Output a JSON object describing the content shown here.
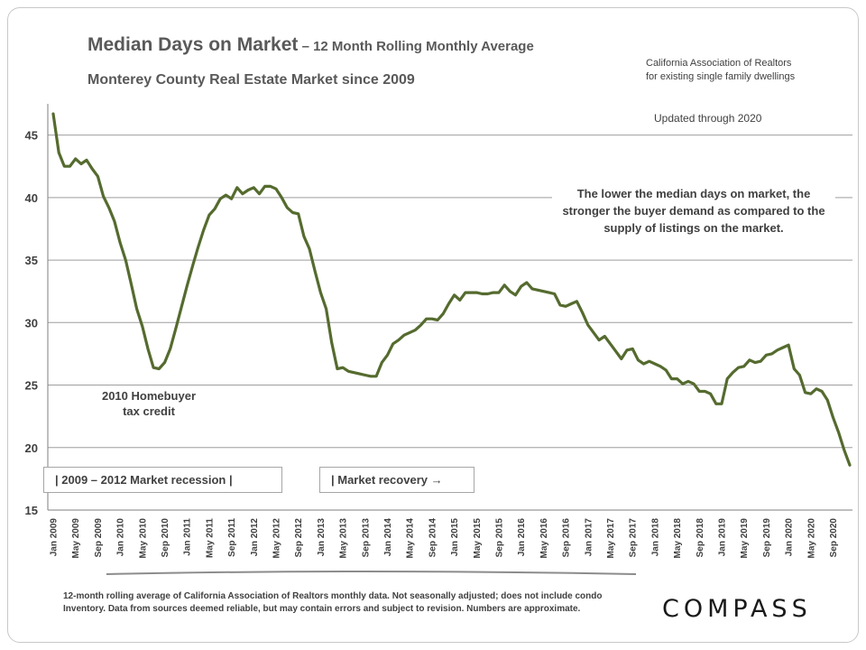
{
  "header": {
    "title_main": "Median Days on Market",
    "title_sub": " – 12 Month Rolling Monthly Average",
    "subtitle": "Monterey County Real Estate Market since 2009",
    "source_line1": "California Association of Realtors",
    "source_line2": "for existing single family dwellings",
    "updated": "Updated through 2020"
  },
  "annotations": {
    "note": "The lower the median days on market, the stronger the buyer demand as compared to the supply of listings on the market.",
    "credit_line1": "2010 Homebuyer",
    "credit_line2": "tax credit",
    "recession": "|   2009 – 2012 Market recession   |",
    "recovery": "| Market recovery →"
  },
  "footer": {
    "footnote": "12-month rolling average of California Association of Realtors monthly data. Not seasonally adjusted; does not include condo Inventory. Data from sources deemed reliable, but may contain errors and subject to revision. Numbers are approximate.",
    "logo": "COMPASS"
  },
  "colors": {
    "line": "#556b2f",
    "grid": "#9e9e9e",
    "text": "#404040"
  },
  "chart_data": {
    "type": "line",
    "title": "Median Days on Market – 12 Month Rolling Monthly Average",
    "ylim": [
      15,
      47.5
    ],
    "yticks": [
      15,
      20,
      25,
      30,
      35,
      40,
      45
    ],
    "grid": "horizontal",
    "x_start": "Jan 2009",
    "x_end": "Dec 2020",
    "x_tick_labels": [
      "Jan 2009",
      "May 2009",
      "Sep 2009",
      "Jan 2010",
      "May 2010",
      "Sep 2010",
      "Jan 2011",
      "May 2011",
      "Sep 2011",
      "Jan 2012",
      "May 2012",
      "Sep 2012",
      "Jan 2013",
      "May 2013",
      "Sep 2013",
      "Jan 2014",
      "May 2014",
      "Sep 2014",
      "Jan 2015",
      "May 2015",
      "Sep 2015",
      "Jan 2016",
      "May 2016",
      "Sep 2016",
      "Jan 2017",
      "May 2017",
      "Sep 2017",
      "Jan 2018",
      "May 2018",
      "Sep 2018",
      "Jan 2019",
      "May 2019",
      "Sep 2019",
      "Jan 2020",
      "May 2020",
      "Sep 2020"
    ],
    "series": [
      {
        "values": [
          46.7,
          43.6,
          42.5,
          42.5,
          43.1,
          42.7,
          43.0,
          42.3,
          41.7,
          40.1,
          39.2,
          38.1,
          36.4,
          35.0,
          33.1,
          31.1,
          29.7,
          27.9,
          26.4,
          26.3,
          26.8,
          27.9,
          29.5,
          31.2,
          32.9,
          34.5,
          36.0,
          37.4,
          38.6,
          39.1,
          39.9,
          40.2,
          39.9,
          40.8,
          40.3,
          40.6,
          40.8,
          40.3,
          40.9,
          40.9,
          40.7,
          40.0,
          39.2,
          38.8,
          38.7,
          36.9,
          35.9,
          34.1,
          32.4,
          31.1,
          28.4,
          26.3,
          26.4,
          26.1,
          26.0,
          25.9,
          25.8,
          25.7,
          25.7,
          26.8,
          27.4,
          28.3,
          28.6,
          29.0,
          29.2,
          29.4,
          29.8,
          30.3,
          30.3,
          30.2,
          30.7,
          31.5,
          32.2,
          31.8,
          32.4,
          32.4,
          32.4,
          32.3,
          32.3,
          32.4,
          32.4,
          33.0,
          32.5,
          32.2,
          32.9,
          33.2,
          32.7,
          32.6,
          32.5,
          32.4,
          32.3,
          31.4,
          31.3,
          31.5,
          31.7,
          30.8,
          29.8,
          29.2,
          28.6,
          28.9,
          28.3,
          27.7,
          27.1,
          27.8,
          27.9,
          27.0,
          26.7,
          26.9,
          26.7,
          26.5,
          26.2,
          25.5,
          25.5,
          25.1,
          25.3,
          25.1,
          24.5,
          24.5,
          24.3,
          23.5,
          23.5,
          25.5,
          26.0,
          26.4,
          26.5,
          27.0,
          26.8,
          26.9,
          27.4,
          27.5,
          27.8,
          28.0,
          28.2,
          26.3,
          25.8,
          24.4,
          24.3,
          24.7,
          24.5,
          23.8,
          22.4,
          21.2,
          19.8,
          18.6
        ]
      }
    ]
  }
}
